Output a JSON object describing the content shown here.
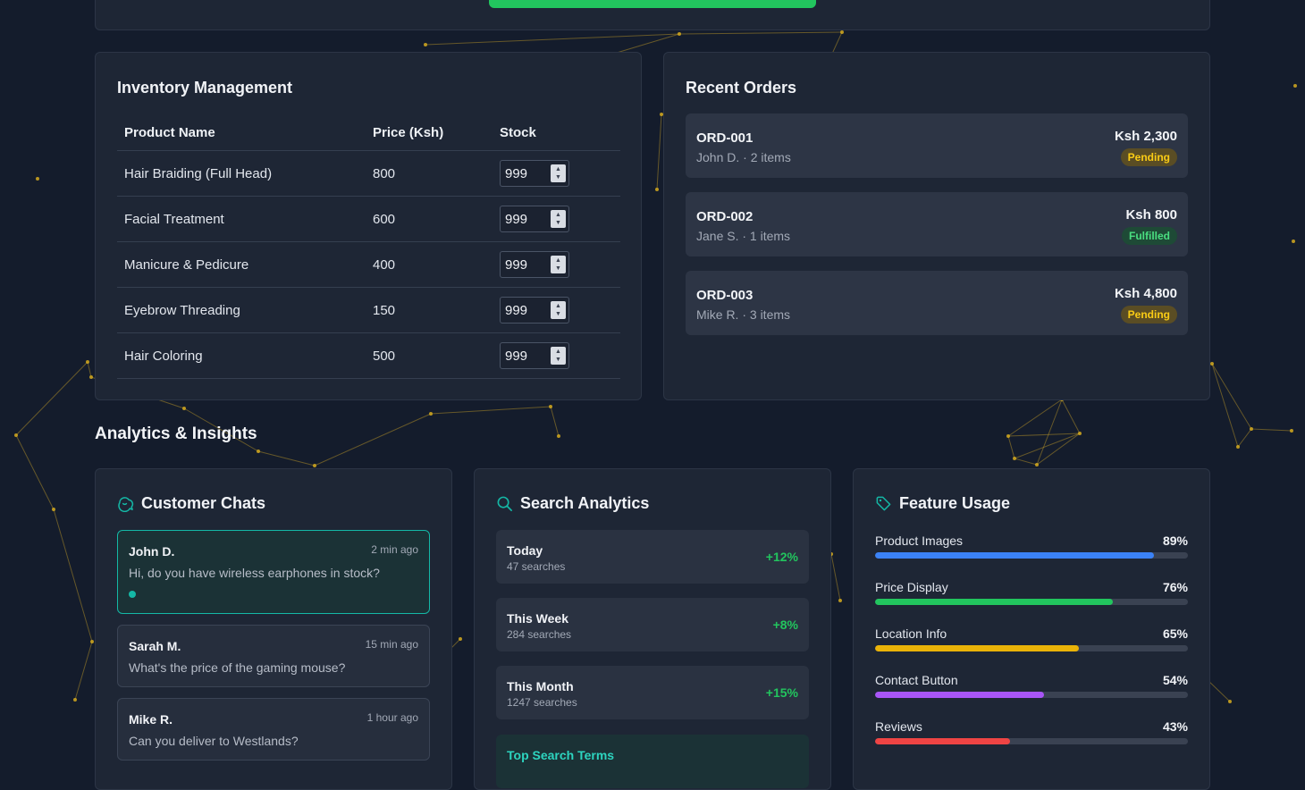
{
  "inventory": {
    "title": "Inventory Management",
    "columns": [
      "Product Name",
      "Price (Ksh)",
      "Stock"
    ],
    "rows": [
      {
        "name": "Hair Braiding (Full Head)",
        "price": "800",
        "stock": "999"
      },
      {
        "name": "Facial Treatment",
        "price": "600",
        "stock": "999"
      },
      {
        "name": "Manicure & Pedicure",
        "price": "400",
        "stock": "999"
      },
      {
        "name": "Eyebrow Threading",
        "price": "150",
        "stock": "999"
      },
      {
        "name": "Hair Coloring",
        "price": "500",
        "stock": "999"
      }
    ]
  },
  "orders": {
    "title": "Recent Orders",
    "items": [
      {
        "id": "ORD-001",
        "meta": "John D. · 2 items",
        "amount": "Ksh 2,300",
        "status": "Pending",
        "status_type": "pending"
      },
      {
        "id": "ORD-002",
        "meta": "Jane S. · 1 items",
        "amount": "Ksh 800",
        "status": "Fulfilled",
        "status_type": "fulfilled"
      },
      {
        "id": "ORD-003",
        "meta": "Mike R. · 3 items",
        "amount": "Ksh 4,800",
        "status": "Pending",
        "status_type": "pending"
      }
    ]
  },
  "analytics": {
    "title": "Analytics & Insights",
    "chats": {
      "title": "Customer Chats",
      "icon": "chat-icon",
      "items": [
        {
          "name": "John D.",
          "time": "2 min ago",
          "message": "Hi, do you have wireless earphones in stock?",
          "unread": true
        },
        {
          "name": "Sarah M.",
          "time": "15 min ago",
          "message": "What's the price of the gaming mouse?",
          "unread": false
        },
        {
          "name": "Mike R.",
          "time": "1 hour ago",
          "message": "Can you deliver to Westlands?",
          "unread": false
        }
      ]
    },
    "search": {
      "title": "Search Analytics",
      "icon": "search-icon",
      "stats": [
        {
          "label": "Today",
          "sub": "47 searches",
          "change": "+12%"
        },
        {
          "label": "This Week",
          "sub": "284 searches",
          "change": "+8%"
        },
        {
          "label": "This Month",
          "sub": "1247 searches",
          "change": "+15%"
        }
      ],
      "top_terms_label": "Top Search Terms"
    },
    "features": {
      "title": "Feature Usage",
      "icon": "tag-icon",
      "items": [
        {
          "label": "Product Images",
          "pct_label": "89%",
          "value": 89,
          "color": "#3b82f6"
        },
        {
          "label": "Price Display",
          "pct_label": "76%",
          "value": 76,
          "color": "#22c55e"
        },
        {
          "label": "Location Info",
          "pct_label": "65%",
          "value": 65,
          "color": "#eab308"
        },
        {
          "label": "Contact Button",
          "pct_label": "54%",
          "value": 54,
          "color": "#a855f7"
        },
        {
          "label": "Reviews",
          "pct_label": "43%",
          "value": 43,
          "color": "#ef4444"
        }
      ]
    }
  },
  "colors": {
    "accent": "#14b8a6",
    "success": "#22c55e",
    "background": "#141c2c",
    "card": "#1e2635"
  }
}
